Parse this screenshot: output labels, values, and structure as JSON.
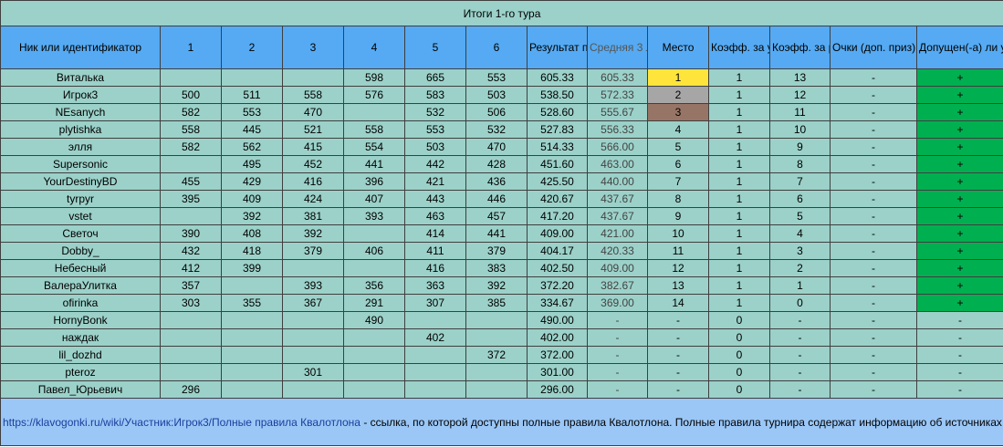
{
  "title": "Итоги 1-го тура",
  "headers": [
    "Ник или идентификатор",
    "1",
    "2",
    "3",
    "4",
    "5",
    "6",
    "Результат первого тура",
    "Средняя 3 лучших",
    "Место",
    "Коэфф. за уч.",
    "Коэфф. за рез.",
    "Очки (доп. приз)",
    "Допущен(-а) ли участник(-ца) к турниру?"
  ],
  "colors": {
    "place_1": "#ffe53b",
    "place_2": "#a6a6a6",
    "place_3": "#977566",
    "admitted": "#00b050",
    "row_bg": "#9bd1c9",
    "header_bg": "#55aaf3",
    "footer_bg": "#9bc7f7"
  },
  "rows": [
    [
      "Виталька",
      "",
      "",
      "",
      "598",
      "665",
      "553",
      "605.33",
      "605.33",
      "1",
      "1",
      "13",
      "-",
      "+"
    ],
    [
      "Игрок3",
      "500",
      "511",
      "558",
      "576",
      "583",
      "503",
      "538.50",
      "572.33",
      "2",
      "1",
      "12",
      "-",
      "+"
    ],
    [
      "NEsanych",
      "582",
      "553",
      "470",
      "",
      "532",
      "506",
      "528.60",
      "555.67",
      "3",
      "1",
      "11",
      "-",
      "+"
    ],
    [
      "plytishka",
      "558",
      "445",
      "521",
      "558",
      "553",
      "532",
      "527.83",
      "556.33",
      "4",
      "1",
      "10",
      "-",
      "+"
    ],
    [
      "элля",
      "582",
      "562",
      "415",
      "554",
      "503",
      "470",
      "514.33",
      "566.00",
      "5",
      "1",
      "9",
      "-",
      "+"
    ],
    [
      "Supersonic",
      "",
      "495",
      "452",
      "441",
      "442",
      "428",
      "451.60",
      "463.00",
      "6",
      "1",
      "8",
      "-",
      "+"
    ],
    [
      "YourDestinyBD",
      "455",
      "429",
      "416",
      "396",
      "421",
      "436",
      "425.50",
      "440.00",
      "7",
      "1",
      "7",
      "-",
      "+"
    ],
    [
      "tyrpyr",
      "395",
      "409",
      "424",
      "407",
      "443",
      "446",
      "420.67",
      "437.67",
      "8",
      "1",
      "6",
      "-",
      "+"
    ],
    [
      "vstet",
      "",
      "392",
      "381",
      "393",
      "463",
      "457",
      "417.20",
      "437.67",
      "9",
      "1",
      "5",
      "-",
      "+"
    ],
    [
      "Светоч",
      "390",
      "408",
      "392",
      "",
      "414",
      "441",
      "409.00",
      "421.00",
      "10",
      "1",
      "4",
      "-",
      "+"
    ],
    [
      "Dobby_",
      "432",
      "418",
      "379",
      "406",
      "411",
      "379",
      "404.17",
      "420.33",
      "11",
      "1",
      "3",
      "-",
      "+"
    ],
    [
      "Небесный",
      "412",
      "399",
      "",
      "",
      "416",
      "383",
      "402.50",
      "409.00",
      "12",
      "1",
      "2",
      "-",
      "+"
    ],
    [
      "ВалераУлитка",
      "357",
      "",
      "393",
      "356",
      "363",
      "392",
      "372.20",
      "382.67",
      "13",
      "1",
      "1",
      "-",
      "+"
    ],
    [
      "ofirinka",
      "303",
      "355",
      "367",
      "291",
      "307",
      "385",
      "334.67",
      "369.00",
      "14",
      "1",
      "0",
      "-",
      "+"
    ],
    [
      "HornyBonk",
      "",
      "",
      "",
      "490",
      "",
      "",
      "490.00",
      "-",
      "-",
      "0",
      "-",
      "-",
      "-"
    ],
    [
      "наждак",
      "",
      "",
      "",
      "",
      "402",
      "",
      "402.00",
      "-",
      "-",
      "0",
      "-",
      "-",
      "-"
    ],
    [
      "lil_dozhd",
      "",
      "",
      "",
      "",
      "",
      "372",
      "372.00",
      "-",
      "-",
      "0",
      "-",
      "-",
      "-"
    ],
    [
      "pteroz",
      "",
      "",
      "301",
      "",
      "",
      "",
      "301.00",
      "-",
      "-",
      "0",
      "-",
      "-",
      "-"
    ],
    [
      "Павел_Юрьевич",
      "296",
      "",
      "",
      "",
      "",
      "",
      "296.00",
      "-",
      "-",
      "0",
      "-",
      "-",
      "-"
    ]
  ],
  "footer": {
    "link_text": "https://klavogonki.ru/wiki/Участник:Игрок3/Полные правила Квалотлона",
    "text": " - ссылка, по которой доступны полные правила Квалотлона. Полные правила турнира содержат информацию об источниках данных, шрифтах, иные подробности о таблице. О пробеге: пробег проверялся только у тех, кто претендует на участие в туре. Если не засчитался результативный заезд, обратитесь к ведущему. Внимание: проверялся пробег на момент подведения итогов."
  }
}
